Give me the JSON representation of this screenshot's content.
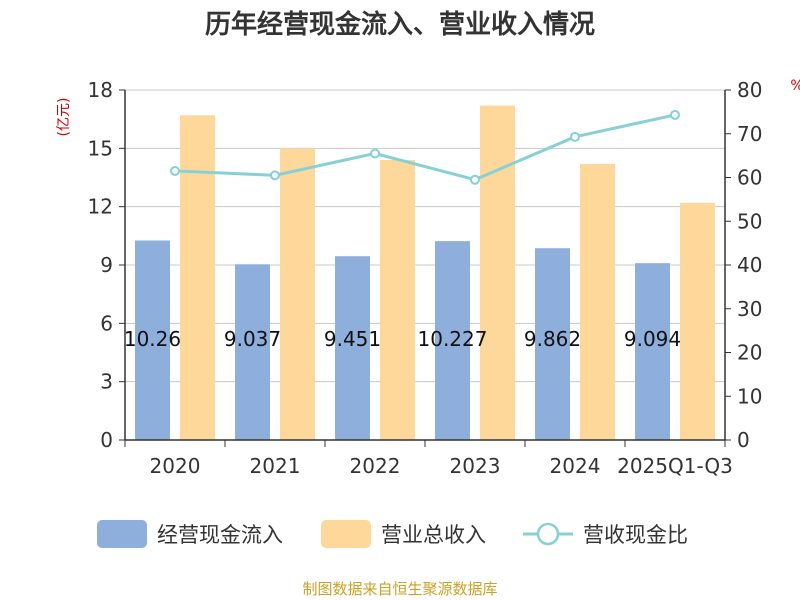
{
  "chart_data": {
    "type": "bar",
    "title": "历年经营现金流入、营业收入情况",
    "categories": [
      "2020",
      "2021",
      "2022",
      "2023",
      "2024",
      "2025Q1-Q3"
    ],
    "left_axis": {
      "unit": "(亿元)",
      "ylim": [
        0,
        18
      ],
      "ticks": [
        "0",
        "3",
        "6",
        "9",
        "12",
        "15",
        "18"
      ]
    },
    "right_axis": {
      "unit": "%",
      "ylim": [
        0,
        80
      ],
      "ticks": [
        "0",
        "10",
        "20",
        "30",
        "40",
        "50",
        "60",
        "70",
        "80"
      ]
    },
    "series": [
      {
        "name": "经营现金流入",
        "type": "bar",
        "axis": "left",
        "color": "#8eaedb",
        "values": [
          10.26,
          9.037,
          9.451,
          10.227,
          9.862,
          9.094
        ],
        "labels": [
          "10.26",
          "9.037",
          "9.451",
          "10.227",
          "9.862",
          "9.094"
        ]
      },
      {
        "name": "营业总收入",
        "type": "bar",
        "axis": "left",
        "color": "#fdd89a",
        "values": [
          16.7,
          15.0,
          14.4,
          17.2,
          14.2,
          12.2
        ]
      },
      {
        "name": "营收现金比",
        "type": "line",
        "axis": "right",
        "color": "#87d0d6",
        "values": [
          61.5,
          60.5,
          65.5,
          59.5,
          69.3,
          74.3
        ]
      }
    ],
    "grid": true,
    "legend_position": "bottom"
  },
  "source": "制图数据来自恒生聚源数据库"
}
